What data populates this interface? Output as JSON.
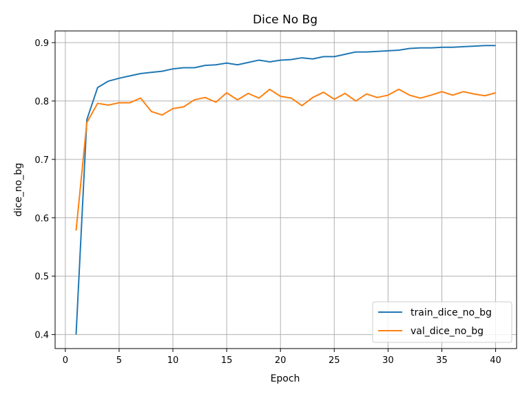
{
  "chart_data": {
    "type": "line",
    "title": "Dice No Bg",
    "xlabel": "Epoch",
    "ylabel": "dice_no_bg",
    "xlim": [
      -0.95,
      41.95
    ],
    "ylim": [
      0.376,
      0.92
    ],
    "xticks": [
      0,
      5,
      10,
      15,
      20,
      25,
      30,
      35,
      40
    ],
    "yticks": [
      0.4,
      0.5,
      0.6,
      0.7,
      0.8,
      0.9
    ],
    "grid": true,
    "legend_position": "lower-right",
    "x": [
      1,
      2,
      3,
      4,
      5,
      6,
      7,
      8,
      9,
      10,
      11,
      12,
      13,
      14,
      15,
      16,
      17,
      18,
      19,
      20,
      21,
      22,
      23,
      24,
      25,
      26,
      27,
      28,
      29,
      30,
      31,
      32,
      33,
      34,
      35,
      36,
      37,
      38,
      39,
      40
    ],
    "series": [
      {
        "name": "train_dice_no_bg",
        "color": "#1f77b4",
        "values": [
          0.4,
          0.768,
          0.823,
          0.834,
          0.839,
          0.843,
          0.847,
          0.849,
          0.851,
          0.855,
          0.857,
          0.857,
          0.861,
          0.862,
          0.865,
          0.862,
          0.866,
          0.87,
          0.867,
          0.87,
          0.871,
          0.874,
          0.872,
          0.876,
          0.876,
          0.88,
          0.884,
          0.884,
          0.885,
          0.886,
          0.887,
          0.89,
          0.891,
          0.891,
          0.892,
          0.892,
          0.893,
          0.894,
          0.895,
          0.895
        ]
      },
      {
        "name": "val_dice_no_bg",
        "color": "#ff7f0e",
        "values": [
          0.578,
          0.763,
          0.796,
          0.793,
          0.797,
          0.797,
          0.805,
          0.782,
          0.776,
          0.787,
          0.79,
          0.802,
          0.806,
          0.798,
          0.814,
          0.802,
          0.813,
          0.805,
          0.82,
          0.808,
          0.805,
          0.792,
          0.806,
          0.815,
          0.803,
          0.813,
          0.8,
          0.812,
          0.806,
          0.81,
          0.82,
          0.81,
          0.805,
          0.81,
          0.816,
          0.81,
          0.816,
          0.812,
          0.809,
          0.814
        ]
      }
    ]
  }
}
